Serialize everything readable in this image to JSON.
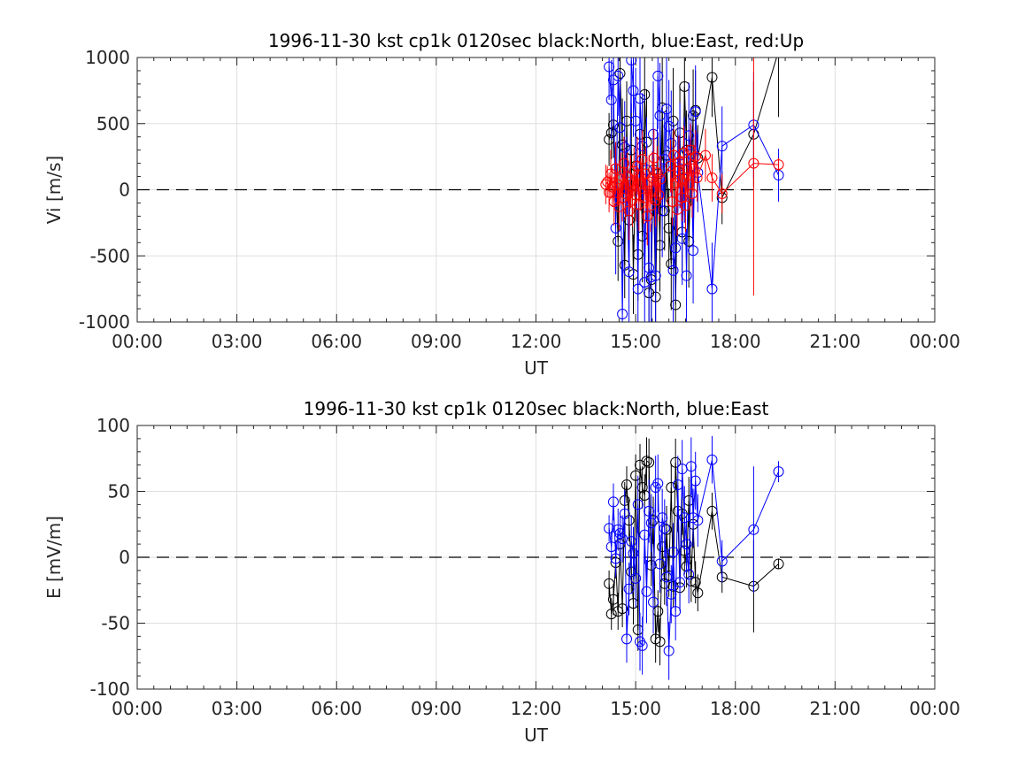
{
  "chart_data": [
    {
      "type": "scatter",
      "title": "1996-11-30 kst cp1k 0120sec black:North, blue:East, red:Up",
      "xlabel": "UT",
      "ylabel": "Vi [m/s]",
      "xlim": [
        0,
        24
      ],
      "ylim": [
        -1000,
        1000
      ],
      "xticks": [
        0,
        3,
        6,
        9,
        12,
        15,
        18,
        21,
        24
      ],
      "xtick_labels": [
        "00:00",
        "03:00",
        "06:00",
        "09:00",
        "12:00",
        "15:00",
        "18:00",
        "21:00",
        "00:00"
      ],
      "yticks": [
        -1000,
        -500,
        0,
        500,
        1000
      ],
      "ytick_labels": [
        "-1000",
        "-500",
        "0",
        "500",
        "1000"
      ],
      "grid": true,
      "zero_line": "dashed",
      "colors": {
        "North": "#000000",
        "East": "#0000ff",
        "Up": "#ff0000"
      },
      "series": [
        {
          "name": "North",
          "color": "#000000",
          "x": [
            14.2,
            14.27,
            14.33,
            14.4,
            14.47,
            14.53,
            14.6,
            14.67,
            14.73,
            14.8,
            14.87,
            14.93,
            15.0,
            15.07,
            15.13,
            15.2,
            15.27,
            15.33,
            15.4,
            15.47,
            15.53,
            15.6,
            15.67,
            15.73,
            15.8,
            15.87,
            15.93,
            16.0,
            16.07,
            16.13,
            16.2,
            16.27,
            16.33,
            16.4,
            16.47,
            16.53,
            16.6,
            16.67,
            16.73,
            16.8,
            16.87,
            17.3,
            17.6,
            18.55,
            19.3
          ],
          "y": [
            380,
            430,
            490,
            160,
            -390,
            880,
            340,
            -570,
            520,
            -230,
            300,
            -640,
            180,
            -490,
            420,
            -350,
            720,
            360,
            -780,
            -680,
            150,
            -810,
            120,
            -420,
            620,
            -160,
            260,
            -290,
            -560,
            520,
            -870,
            140,
            430,
            -320,
            780,
            300,
            -390,
            180,
            560,
            600,
            240,
            850,
            -60,
            420,
            1050
          ],
          "err": [
            200,
            200,
            250,
            200,
            300,
            200,
            350,
            250,
            300,
            250,
            350,
            300,
            400,
            350,
            400,
            350,
            450,
            400,
            450,
            400,
            350,
            450,
            300,
            350,
            400,
            300,
            350,
            300,
            350,
            400,
            400,
            300,
            350,
            300,
            400,
            300,
            350,
            300,
            350,
            300,
            250,
            300,
            200,
            400,
            500
          ]
        },
        {
          "name": "East",
          "color": "#0000ff",
          "x": [
            14.2,
            14.27,
            14.33,
            14.4,
            14.47,
            14.53,
            14.6,
            14.67,
            14.73,
            14.8,
            14.87,
            14.93,
            15.0,
            15.07,
            15.13,
            15.2,
            15.27,
            15.33,
            15.4,
            15.47,
            15.53,
            15.6,
            15.67,
            15.73,
            15.8,
            15.87,
            15.93,
            16.0,
            16.07,
            16.13,
            16.2,
            16.27,
            16.33,
            16.4,
            16.47,
            16.53,
            16.6,
            16.67,
            16.73,
            16.8,
            16.87,
            17.3,
            17.6,
            18.55,
            19.3
          ],
          "y": [
            930,
            680,
            830,
            -290,
            860,
            470,
            -940,
            320,
            100,
            -620,
            980,
            750,
            520,
            -750,
            690,
            330,
            -700,
            150,
            -590,
            -660,
            420,
            -650,
            860,
            560,
            -160,
            230,
            610,
            480,
            350,
            -610,
            -440,
            170,
            260,
            -370,
            150,
            -650,
            410,
            270,
            -460,
            590,
            130,
            -750,
            330,
            490,
            110
          ],
          "err": [
            250,
            300,
            300,
            350,
            300,
            350,
            400,
            350,
            300,
            400,
            400,
            350,
            400,
            400,
            400,
            400,
            450,
            400,
            450,
            400,
            400,
            450,
            400,
            400,
            350,
            350,
            400,
            350,
            400,
            400,
            400,
            350,
            400,
            350,
            400,
            350,
            400,
            350,
            400,
            350,
            300,
            350,
            300,
            400,
            200
          ]
        },
        {
          "name": "Up",
          "color": "#ff0000",
          "x": [
            14.1,
            14.15,
            14.2,
            14.25,
            14.3,
            14.35,
            14.4,
            14.45,
            14.5,
            14.55,
            14.6,
            14.65,
            14.7,
            14.75,
            14.8,
            14.85,
            14.9,
            14.95,
            15.0,
            15.05,
            15.1,
            15.15,
            15.2,
            15.25,
            15.3,
            15.35,
            15.4,
            15.45,
            15.5,
            15.55,
            15.6,
            15.65,
            15.7,
            15.75,
            16.05,
            16.1,
            16.15,
            16.2,
            16.25,
            16.3,
            16.35,
            16.4,
            16.45,
            16.5,
            16.55,
            16.6,
            16.65,
            16.7,
            16.75,
            16.8,
            16.85,
            17.1,
            17.3,
            17.6,
            18.55,
            19.3
          ],
          "y": [
            40,
            60,
            -20,
            120,
            20,
            -90,
            160,
            40,
            -130,
            80,
            -60,
            200,
            -30,
            100,
            -160,
            60,
            -80,
            140,
            -40,
            180,
            -110,
            40,
            230,
            -60,
            120,
            -200,
            60,
            -120,
            90,
            240,
            -80,
            130,
            -40,
            80,
            180,
            -90,
            260,
            50,
            -150,
            210,
            80,
            -60,
            280,
            -120,
            160,
            40,
            300,
            -30,
            160,
            250,
            90,
            260,
            90,
            -30,
            200,
            190
          ],
          "err": [
            150,
            120,
            150,
            180,
            150,
            180,
            200,
            150,
            180,
            200,
            180,
            200,
            200,
            180,
            220,
            200,
            200,
            180,
            200,
            220,
            200,
            200,
            220,
            200,
            200,
            220,
            200,
            200,
            200,
            220,
            200,
            200,
            200,
            180,
            200,
            180,
            200,
            180,
            200,
            200,
            180,
            180,
            200,
            200,
            180,
            180,
            200,
            180,
            180,
            200,
            180,
            200,
            180,
            150,
            1000,
            50
          ]
        }
      ]
    },
    {
      "type": "scatter",
      "title": "1996-11-30 kst cp1k 0120sec black:North, blue:East",
      "xlabel": "UT",
      "ylabel": "E [mV/m]",
      "xlim": [
        0,
        24
      ],
      "ylim": [
        -100,
        100
      ],
      "xticks": [
        0,
        3,
        6,
        9,
        12,
        15,
        18,
        21,
        24
      ],
      "xtick_labels": [
        "00:00",
        "03:00",
        "06:00",
        "09:00",
        "12:00",
        "15:00",
        "18:00",
        "21:00",
        "00:00"
      ],
      "yticks": [
        -100,
        -50,
        0,
        50,
        100
      ],
      "ytick_labels": [
        "-100",
        "-50",
        "0",
        "50",
        "100"
      ],
      "grid": true,
      "zero_line": "dashed",
      "colors": {
        "North": "#000000",
        "East": "#0000ff"
      },
      "series": [
        {
          "name": "North",
          "color": "#000000",
          "x": [
            14.2,
            14.27,
            14.33,
            14.4,
            14.47,
            14.53,
            14.6,
            14.67,
            14.73,
            14.8,
            14.87,
            14.93,
            15.0,
            15.07,
            15.13,
            15.2,
            15.27,
            15.33,
            15.4,
            15.47,
            15.53,
            15.6,
            15.67,
            15.73,
            15.8,
            15.87,
            15.93,
            16.0,
            16.07,
            16.13,
            16.2,
            16.27,
            16.33,
            16.4,
            16.47,
            16.53,
            16.6,
            16.67,
            16.73,
            16.8,
            16.87,
            17.3,
            17.6,
            18.55,
            19.3
          ],
          "y": [
            -20,
            -43,
            -32,
            -4,
            -41,
            10,
            -39,
            43,
            55,
            28,
            -11,
            -35,
            62,
            -55,
            70,
            53,
            47,
            73,
            72,
            -6,
            28,
            -62,
            -41,
            -64,
            8,
            -20,
            21,
            -14,
            53,
            -22,
            72,
            35,
            -23,
            33,
            5,
            -7,
            43,
            -18,
            25,
            -19,
            -27,
            35,
            -15,
            -22,
            -5
          ],
          "err": [
            10,
            12,
            12,
            12,
            14,
            12,
            14,
            14,
            14,
            16,
            16,
            16,
            16,
            16,
            16,
            16,
            16,
            18,
            18,
            16,
            18,
            18,
            16,
            18,
            16,
            16,
            18,
            16,
            18,
            16,
            18,
            16,
            16,
            16,
            18,
            16,
            18,
            16,
            18,
            16,
            14,
            14,
            12,
            35,
            4
          ]
        },
        {
          "name": "East",
          "color": "#0000ff",
          "x": [
            14.2,
            14.27,
            14.33,
            14.4,
            14.47,
            14.53,
            14.6,
            14.67,
            14.73,
            14.8,
            14.87,
            14.93,
            15.0,
            15.07,
            15.13,
            15.2,
            15.27,
            15.33,
            15.4,
            15.47,
            15.53,
            15.6,
            15.67,
            15.73,
            15.8,
            15.87,
            15.93,
            16.0,
            16.07,
            16.13,
            16.2,
            16.27,
            16.33,
            16.4,
            16.47,
            16.53,
            16.6,
            16.67,
            16.73,
            16.8,
            16.87,
            17.3,
            17.6,
            18.55,
            19.3
          ],
          "y": [
            22,
            8,
            42,
            -1,
            21,
            18,
            14,
            33,
            -62,
            -24,
            12,
            3,
            -16,
            40,
            -64,
            -67,
            17,
            -26,
            35,
            26,
            -34,
            53,
            56,
            -5,
            30,
            22,
            -15,
            -71,
            -28,
            4,
            -41,
            55,
            -19,
            67,
            30,
            10,
            -13,
            69,
            30,
            58,
            28,
            74,
            -3,
            21,
            65
          ],
          "err": [
            10,
            12,
            14,
            14,
            16,
            16,
            18,
            18,
            18,
            20,
            20,
            20,
            22,
            22,
            22,
            22,
            22,
            24,
            24,
            22,
            24,
            24,
            22,
            22,
            22,
            22,
            22,
            22,
            22,
            22,
            22,
            22,
            22,
            22,
            24,
            22,
            22,
            22,
            22,
            22,
            20,
            18,
            16,
            48,
            8
          ]
        }
      ]
    }
  ]
}
